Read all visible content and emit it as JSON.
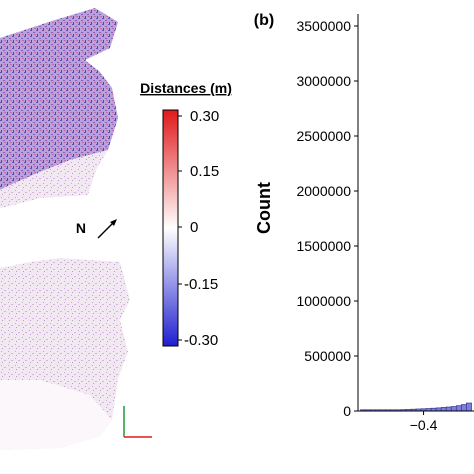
{
  "colorbar": {
    "title": "Distances (m)",
    "ticks": [
      "0.30",
      "0.15",
      "0",
      "-0.15",
      "-0.30"
    ],
    "range": [
      -0.3,
      0.3
    ],
    "colors": {
      "max": "#e0191b",
      "mid": "#ffffff",
      "min": "#1f1fd0"
    }
  },
  "north_arrow": {
    "label": "N"
  },
  "axes_gizmo": {
    "colors": {
      "vertical": "#2ea043",
      "horizontal": "#e0191b"
    }
  },
  "panel_label": "(b)",
  "map_colors": {
    "dense": "#7b5fb4",
    "sparse": "#c9a8d4"
  },
  "chart_data": {
    "type": "bar",
    "title": "",
    "xlabel": "",
    "ylabel": "Count",
    "ylim": [
      0,
      3500000
    ],
    "xlim": [
      -0.53,
      -0.3
    ],
    "y_ticks": [
      "3500000",
      "3000000",
      "2500000",
      "2000000",
      "1500000",
      "1000000",
      "500000",
      "0"
    ],
    "x_ticks": [
      "−0.4"
    ],
    "bar_color": "#7b7fdd",
    "bar_edge": "#3c3f9a",
    "bins": [
      -0.52,
      -0.51,
      -0.5,
      -0.49,
      -0.48,
      -0.47,
      -0.46,
      -0.45,
      -0.44,
      -0.43,
      -0.42,
      -0.41,
      -0.4,
      -0.39,
      -0.38,
      -0.37,
      -0.36,
      -0.35,
      -0.34,
      -0.33,
      -0.32,
      -0.31
    ],
    "values": [
      3000,
      4000,
      5000,
      6000,
      7000,
      8000,
      9000,
      10000,
      12000,
      14000,
      16000,
      18000,
      20000,
      22000,
      25000,
      28000,
      32000,
      36000,
      40000,
      48000,
      58000,
      72000
    ]
  }
}
